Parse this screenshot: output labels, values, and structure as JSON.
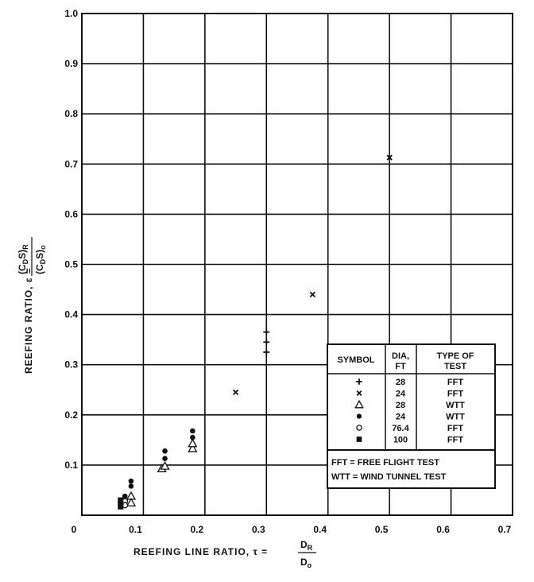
{
  "chart_data": {
    "type": "scatter",
    "title": "",
    "xlabel": "REEFING LINE RATIO, τ =",
    "xlabel_fraction": {
      "numerator": "D",
      "numerator_sub": "R",
      "denominator": "D",
      "denominator_sub": "o"
    },
    "ylabel": "REEFING RATIO, ε =",
    "ylabel_fraction": {
      "numerator": "(C",
      "numerator_sub1": "D",
      "numerator_mid": "S)",
      "numerator_sub2": "R",
      "denominator": "(C",
      "denominator_sub1": "D",
      "denominator_mid": "S)",
      "denominator_sub2": "o"
    },
    "xlim": [
      0,
      0.7
    ],
    "ylim": [
      0,
      1.0
    ],
    "x_ticks": [
      {
        "value": 0,
        "label": "0"
      },
      {
        "value": 0.1,
        "label": "0.1"
      },
      {
        "value": 0.2,
        "label": "0.2"
      },
      {
        "value": 0.3,
        "label": "0.3"
      },
      {
        "value": 0.4,
        "label": "0.4"
      },
      {
        "value": 0.5,
        "label": "0.5"
      },
      {
        "value": 0.6,
        "label": "0.6"
      },
      {
        "value": 0.7,
        "label": "0.7"
      }
    ],
    "y_ticks": [
      {
        "value": 0.1,
        "label": "0.1"
      },
      {
        "value": 0.2,
        "label": "0.2"
      },
      {
        "value": 0.3,
        "label": "0.3"
      },
      {
        "value": 0.4,
        "label": "0.4"
      },
      {
        "value": 0.5,
        "label": "0.5"
      },
      {
        "value": 0.6,
        "label": "0.6"
      },
      {
        "value": 0.7,
        "label": "0.7"
      },
      {
        "value": 0.8,
        "label": "0.8"
      },
      {
        "value": 0.9,
        "label": "0.9"
      },
      {
        "value": 1.0,
        "label": "1.0"
      }
    ],
    "grid": true,
    "legend_position": "right",
    "series": [
      {
        "symbol": "plus",
        "dia": "28",
        "type": "FFT",
        "points": [
          {
            "x": 0.3,
            "y": 0.365
          },
          {
            "x": 0.3,
            "y": 0.345
          },
          {
            "x": 0.3,
            "y": 0.325
          }
        ]
      },
      {
        "symbol": "cross",
        "dia": "24",
        "type": "FFT",
        "points": [
          {
            "x": 0.25,
            "y": 0.245
          },
          {
            "x": 0.375,
            "y": 0.44
          },
          {
            "x": 0.5,
            "y": 0.713
          }
        ]
      },
      {
        "symbol": "triangle",
        "dia": "28",
        "type": "WTT",
        "points": [
          {
            "x": 0.08,
            "y": 0.038
          },
          {
            "x": 0.08,
            "y": 0.025
          },
          {
            "x": 0.13,
            "y": 0.093
          },
          {
            "x": 0.135,
            "y": 0.098
          },
          {
            "x": 0.18,
            "y": 0.133
          },
          {
            "x": 0.18,
            "y": 0.143
          }
        ]
      },
      {
        "symbol": "filled-circle",
        "dia": "24",
        "type": "WTT",
        "points": [
          {
            "x": 0.08,
            "y": 0.068
          },
          {
            "x": 0.08,
            "y": 0.058
          },
          {
            "x": 0.07,
            "y": 0.038
          },
          {
            "x": 0.135,
            "y": 0.128
          },
          {
            "x": 0.135,
            "y": 0.113
          },
          {
            "x": 0.18,
            "y": 0.168
          },
          {
            "x": 0.18,
            "y": 0.155
          }
        ]
      },
      {
        "symbol": "open-circle",
        "dia": "76.4",
        "type": "FFT",
        "points": [
          {
            "x": 0.07,
            "y": 0.028
          },
          {
            "x": 0.07,
            "y": 0.02
          }
        ]
      },
      {
        "symbol": "filled-square",
        "dia": "100",
        "type": "FFT",
        "points": [
          {
            "x": 0.063,
            "y": 0.03
          },
          {
            "x": 0.063,
            "y": 0.023
          },
          {
            "x": 0.063,
            "y": 0.017
          }
        ]
      }
    ]
  },
  "legend": {
    "headers": {
      "symbol": "SYMBOL",
      "dia_line1": "DIA,",
      "dia_line2": "FT",
      "type_line1": "TYPE OF",
      "type_line2": "TEST"
    },
    "notes": [
      "FFT = FREE FLIGHT TEST",
      "WTT = WIND TUNNEL TEST"
    ]
  }
}
